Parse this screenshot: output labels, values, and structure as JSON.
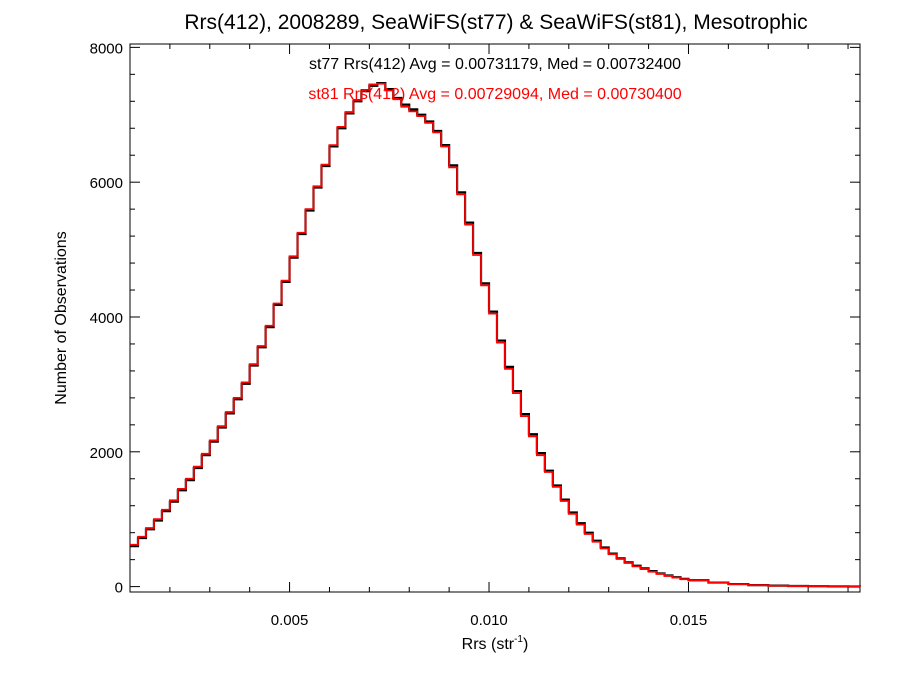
{
  "chart_data": {
    "type": "line",
    "title": "Rrs(412), 2008289, SeaWiFS(st77) & SeaWiFS(st81), Mesotrophic",
    "xlabel_base": "Rrs (str",
    "xlabel_sup": "-1",
    "xlabel_end": ")",
    "ylabel": "Number of Observations",
    "xlim": [
      0.001,
      0.0193
    ],
    "ylim": [
      -80,
      8050
    ],
    "xticks": [
      {
        "value": 0.005,
        "label": "0.005"
      },
      {
        "value": 0.01,
        "label": "0.010"
      },
      {
        "value": 0.015,
        "label": "0.015"
      }
    ],
    "yticks": [
      {
        "value": 0,
        "label": "0"
      },
      {
        "value": 2000,
        "label": "2000"
      },
      {
        "value": 4000,
        "label": "4000"
      },
      {
        "value": 6000,
        "label": "6000"
      },
      {
        "value": 8000,
        "label": "8000"
      }
    ],
    "annotations": [
      {
        "text": "st77 Rrs(412) Avg = 0.00731179, Med = 0.00732400",
        "color": "#000000"
      },
      {
        "text": "st81 Rrs(412) Avg = 0.00729094, Med = 0.00730400",
        "color": "#ff0000"
      }
    ],
    "series": [
      {
        "color": "#000000",
        "x": [
          0.001,
          0.0012,
          0.0014,
          0.0016,
          0.0018,
          0.002,
          0.0022,
          0.0024,
          0.0026,
          0.0028,
          0.003,
          0.0032,
          0.0034,
          0.0036,
          0.0038,
          0.004,
          0.0042,
          0.0044,
          0.0046,
          0.0048,
          0.005,
          0.0052,
          0.0054,
          0.0056,
          0.0058,
          0.006,
          0.0062,
          0.0064,
          0.0066,
          0.0068,
          0.007,
          0.0072,
          0.0074,
          0.0076,
          0.0078,
          0.008,
          0.0082,
          0.0084,
          0.0086,
          0.0088,
          0.009,
          0.0092,
          0.0094,
          0.0096,
          0.0098,
          0.01,
          0.0102,
          0.0104,
          0.0106,
          0.0108,
          0.011,
          0.0112,
          0.0114,
          0.0116,
          0.0118,
          0.012,
          0.0122,
          0.0124,
          0.0126,
          0.0128,
          0.013,
          0.0132,
          0.0134,
          0.0136,
          0.0138,
          0.014,
          0.0142,
          0.0144,
          0.0146,
          0.0148,
          0.015,
          0.0155,
          0.016,
          0.0165,
          0.017,
          0.0175,
          0.018,
          0.0185,
          0.019,
          0.0193
        ],
        "values": [
          600,
          720,
          850,
          980,
          1120,
          1260,
          1430,
          1580,
          1760,
          1950,
          2150,
          2360,
          2570,
          2780,
          3010,
          3280,
          3550,
          3850,
          4180,
          4520,
          4880,
          5230,
          5580,
          5920,
          6240,
          6530,
          6800,
          7020,
          7200,
          7350,
          7430,
          7470,
          7380,
          7250,
          7150,
          7080,
          7000,
          6900,
          6760,
          6550,
          6250,
          5850,
          5400,
          4950,
          4500,
          4080,
          3650,
          3260,
          2900,
          2560,
          2260,
          1980,
          1720,
          1500,
          1290,
          1100,
          940,
          800,
          680,
          580,
          490,
          420,
          360,
          310,
          270,
          230,
          195,
          165,
          140,
          115,
          95,
          60,
          38,
          22,
          14,
          9,
          6,
          3,
          2,
          1
        ]
      },
      {
        "color": "#ff0000",
        "x": [
          0.001,
          0.0012,
          0.0014,
          0.0016,
          0.0018,
          0.002,
          0.0022,
          0.0024,
          0.0026,
          0.0028,
          0.003,
          0.0032,
          0.0034,
          0.0036,
          0.0038,
          0.004,
          0.0042,
          0.0044,
          0.0046,
          0.0048,
          0.005,
          0.0052,
          0.0054,
          0.0056,
          0.0058,
          0.006,
          0.0062,
          0.0064,
          0.0066,
          0.0068,
          0.007,
          0.0072,
          0.0074,
          0.0076,
          0.0078,
          0.008,
          0.0082,
          0.0084,
          0.0086,
          0.0088,
          0.009,
          0.0092,
          0.0094,
          0.0096,
          0.0098,
          0.01,
          0.0102,
          0.0104,
          0.0106,
          0.0108,
          0.011,
          0.0112,
          0.0114,
          0.0116,
          0.0118,
          0.012,
          0.0122,
          0.0124,
          0.0126,
          0.0128,
          0.013,
          0.0132,
          0.0134,
          0.0136,
          0.0138,
          0.014,
          0.0142,
          0.0144,
          0.0146,
          0.0148,
          0.015,
          0.0155,
          0.016,
          0.0165,
          0.017,
          0.0175,
          0.018,
          0.0185,
          0.019,
          0.0193
        ],
        "values": [
          620,
          740,
          870,
          1000,
          1140,
          1280,
          1450,
          1600,
          1780,
          1970,
          2170,
          2380,
          2590,
          2800,
          3030,
          3300,
          3570,
          3870,
          4200,
          4540,
          4900,
          5250,
          5600,
          5940,
          6260,
          6550,
          6820,
          7040,
          7220,
          7370,
          7450,
          7460,
          7360,
          7230,
          7120,
          7050,
          6980,
          6880,
          6740,
          6530,
          6220,
          5820,
          5370,
          4920,
          4470,
          4050,
          3620,
          3230,
          2870,
          2530,
          2230,
          1950,
          1700,
          1480,
          1270,
          1080,
          920,
          780,
          665,
          565,
          480,
          410,
          350,
          300,
          260,
          220,
          188,
          158,
          133,
          110,
          90,
          58,
          36,
          21,
          13,
          8,
          5,
          3,
          2,
          1
        ]
      }
    ]
  }
}
